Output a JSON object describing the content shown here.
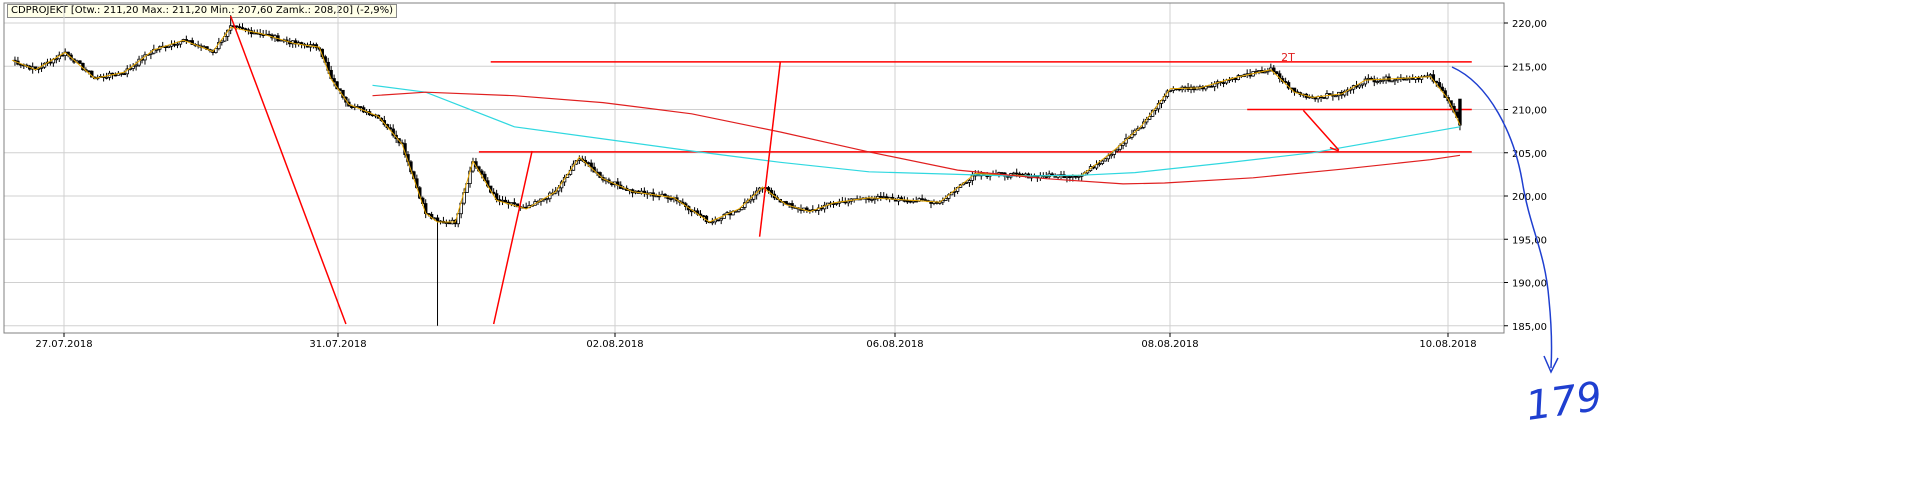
{
  "legend": "CDPROJEKT [Otw.: 211,20  Max.: 211,20  Min.: 207,60  Zamk.: 208,20] (-2,9%)",
  "colors": {
    "candle": "#000000",
    "close_line": "#e8a800",
    "sma_cyan": "#30d8e0",
    "sma_red": "#e02020",
    "annotation_red": "#ff0000",
    "handwriting_blue": "#1f3fd0",
    "grid": "#d0d0d0",
    "frame": "#808080"
  },
  "annotations": {
    "double_top_label": "2T",
    "handwritten_target": "179"
  },
  "chart_data": {
    "type": "candlestick",
    "title": "CDPROJEKT",
    "ylim": [
      184,
      221.5
    ],
    "grid": true,
    "y_ticks": [
      "185,00",
      "190,00",
      "195,00",
      "200,00",
      "205,00",
      "210,00",
      "215,00",
      "220,00"
    ],
    "y_tick_values": [
      185,
      190,
      195,
      200,
      205,
      210,
      215,
      220
    ],
    "x_ticks": [
      "27.07.2018",
      "31.07.2018",
      "02.08.2018",
      "06.08.2018",
      "08.08.2018",
      "10.08.2018"
    ],
    "last_bar": {
      "open": 211.2,
      "high": 211.2,
      "low": 207.6,
      "close": 208.2,
      "change": "-2,9%"
    },
    "close_path": [
      [
        0,
        215.7
      ],
      [
        8,
        214.6
      ],
      [
        18,
        216.6
      ],
      [
        28,
        213.6
      ],
      [
        38,
        214.3
      ],
      [
        48,
        216.9
      ],
      [
        58,
        218.0
      ],
      [
        68,
        216.7
      ],
      [
        74,
        219.5
      ],
      [
        84,
        218.8
      ],
      [
        96,
        217.6
      ],
      [
        104,
        217.2
      ],
      [
        108,
        213.5
      ],
      [
        114,
        210.6
      ],
      [
        124,
        209.2
      ],
      [
        132,
        206.0
      ],
      [
        140,
        198.0
      ],
      [
        144,
        197.0
      ],
      [
        150,
        197.0
      ],
      [
        156,
        204.0
      ],
      [
        164,
        199.5
      ],
      [
        174,
        198.5
      ],
      [
        184,
        200.5
      ],
      [
        192,
        204.5
      ],
      [
        200,
        202.0
      ],
      [
        210,
        200.5
      ],
      [
        224,
        199.8
      ],
      [
        236,
        197.0
      ],
      [
        246,
        198.5
      ],
      [
        254,
        201.0
      ],
      [
        262,
        199.0
      ],
      [
        270,
        198.2
      ],
      [
        278,
        199.2
      ],
      [
        290,
        199.8
      ],
      [
        300,
        199.6
      ],
      [
        314,
        199.3
      ],
      [
        326,
        202.6
      ],
      [
        346,
        202.3
      ],
      [
        362,
        202.4
      ],
      [
        372,
        205.0
      ],
      [
        382,
        208.0
      ],
      [
        392,
        212.4
      ],
      [
        402,
        212.5
      ],
      [
        414,
        213.7
      ],
      [
        426,
        214.6
      ],
      [
        434,
        212.0
      ],
      [
        440,
        211.4
      ],
      [
        450,
        211.8
      ],
      [
        458,
        213.4
      ],
      [
        470,
        213.6
      ],
      [
        480,
        213.8
      ],
      [
        486,
        211.2
      ],
      [
        490,
        208.2
      ]
    ],
    "sma_cyan": [
      [
        122,
        212.8
      ],
      [
        140,
        212.0
      ],
      [
        170,
        208.0
      ],
      [
        200,
        206.6
      ],
      [
        230,
        205.2
      ],
      [
        260,
        203.9
      ],
      [
        290,
        202.8
      ],
      [
        320,
        202.5
      ],
      [
        340,
        202.3
      ],
      [
        362,
        202.4
      ],
      [
        380,
        202.7
      ],
      [
        410,
        203.8
      ],
      [
        440,
        205.0
      ],
      [
        470,
        206.8
      ],
      [
        490,
        208.0
      ]
    ],
    "sma_red": [
      [
        122,
        211.6
      ],
      [
        140,
        212.0
      ],
      [
        170,
        211.6
      ],
      [
        200,
        210.8
      ],
      [
        230,
        209.5
      ],
      [
        260,
        207.4
      ],
      [
        290,
        205.1
      ],
      [
        320,
        203.0
      ],
      [
        350,
        202.0
      ],
      [
        376,
        201.4
      ],
      [
        390,
        201.5
      ],
      [
        420,
        202.1
      ],
      [
        450,
        203.1
      ],
      [
        480,
        204.2
      ],
      [
        490,
        204.7
      ]
    ],
    "hlines": [
      {
        "x1": 162,
        "x2": 494,
        "y": 215.5
      },
      {
        "x1": 158,
        "x2": 494,
        "y": 205.1
      },
      {
        "x1": 418,
        "x2": 494,
        "y": 210.0
      }
    ],
    "trend_segments": [
      {
        "x1": 74,
        "y1": 220.8,
        "x2": 113,
        "y2": 185.2
      },
      {
        "x1": 163,
        "y1": 185.2,
        "x2": 176,
        "y2": 205.2
      },
      {
        "x1": 253,
        "y1": 195.3,
        "x2": 260,
        "y2": 215.5
      },
      {
        "x1": 437,
        "y1": 209.9,
        "x2": 449,
        "y2": 205.3
      },
      {
        "x1": 446,
        "y1": 205.6,
        "x2": 449,
        "y2": 205.2
      }
    ]
  }
}
